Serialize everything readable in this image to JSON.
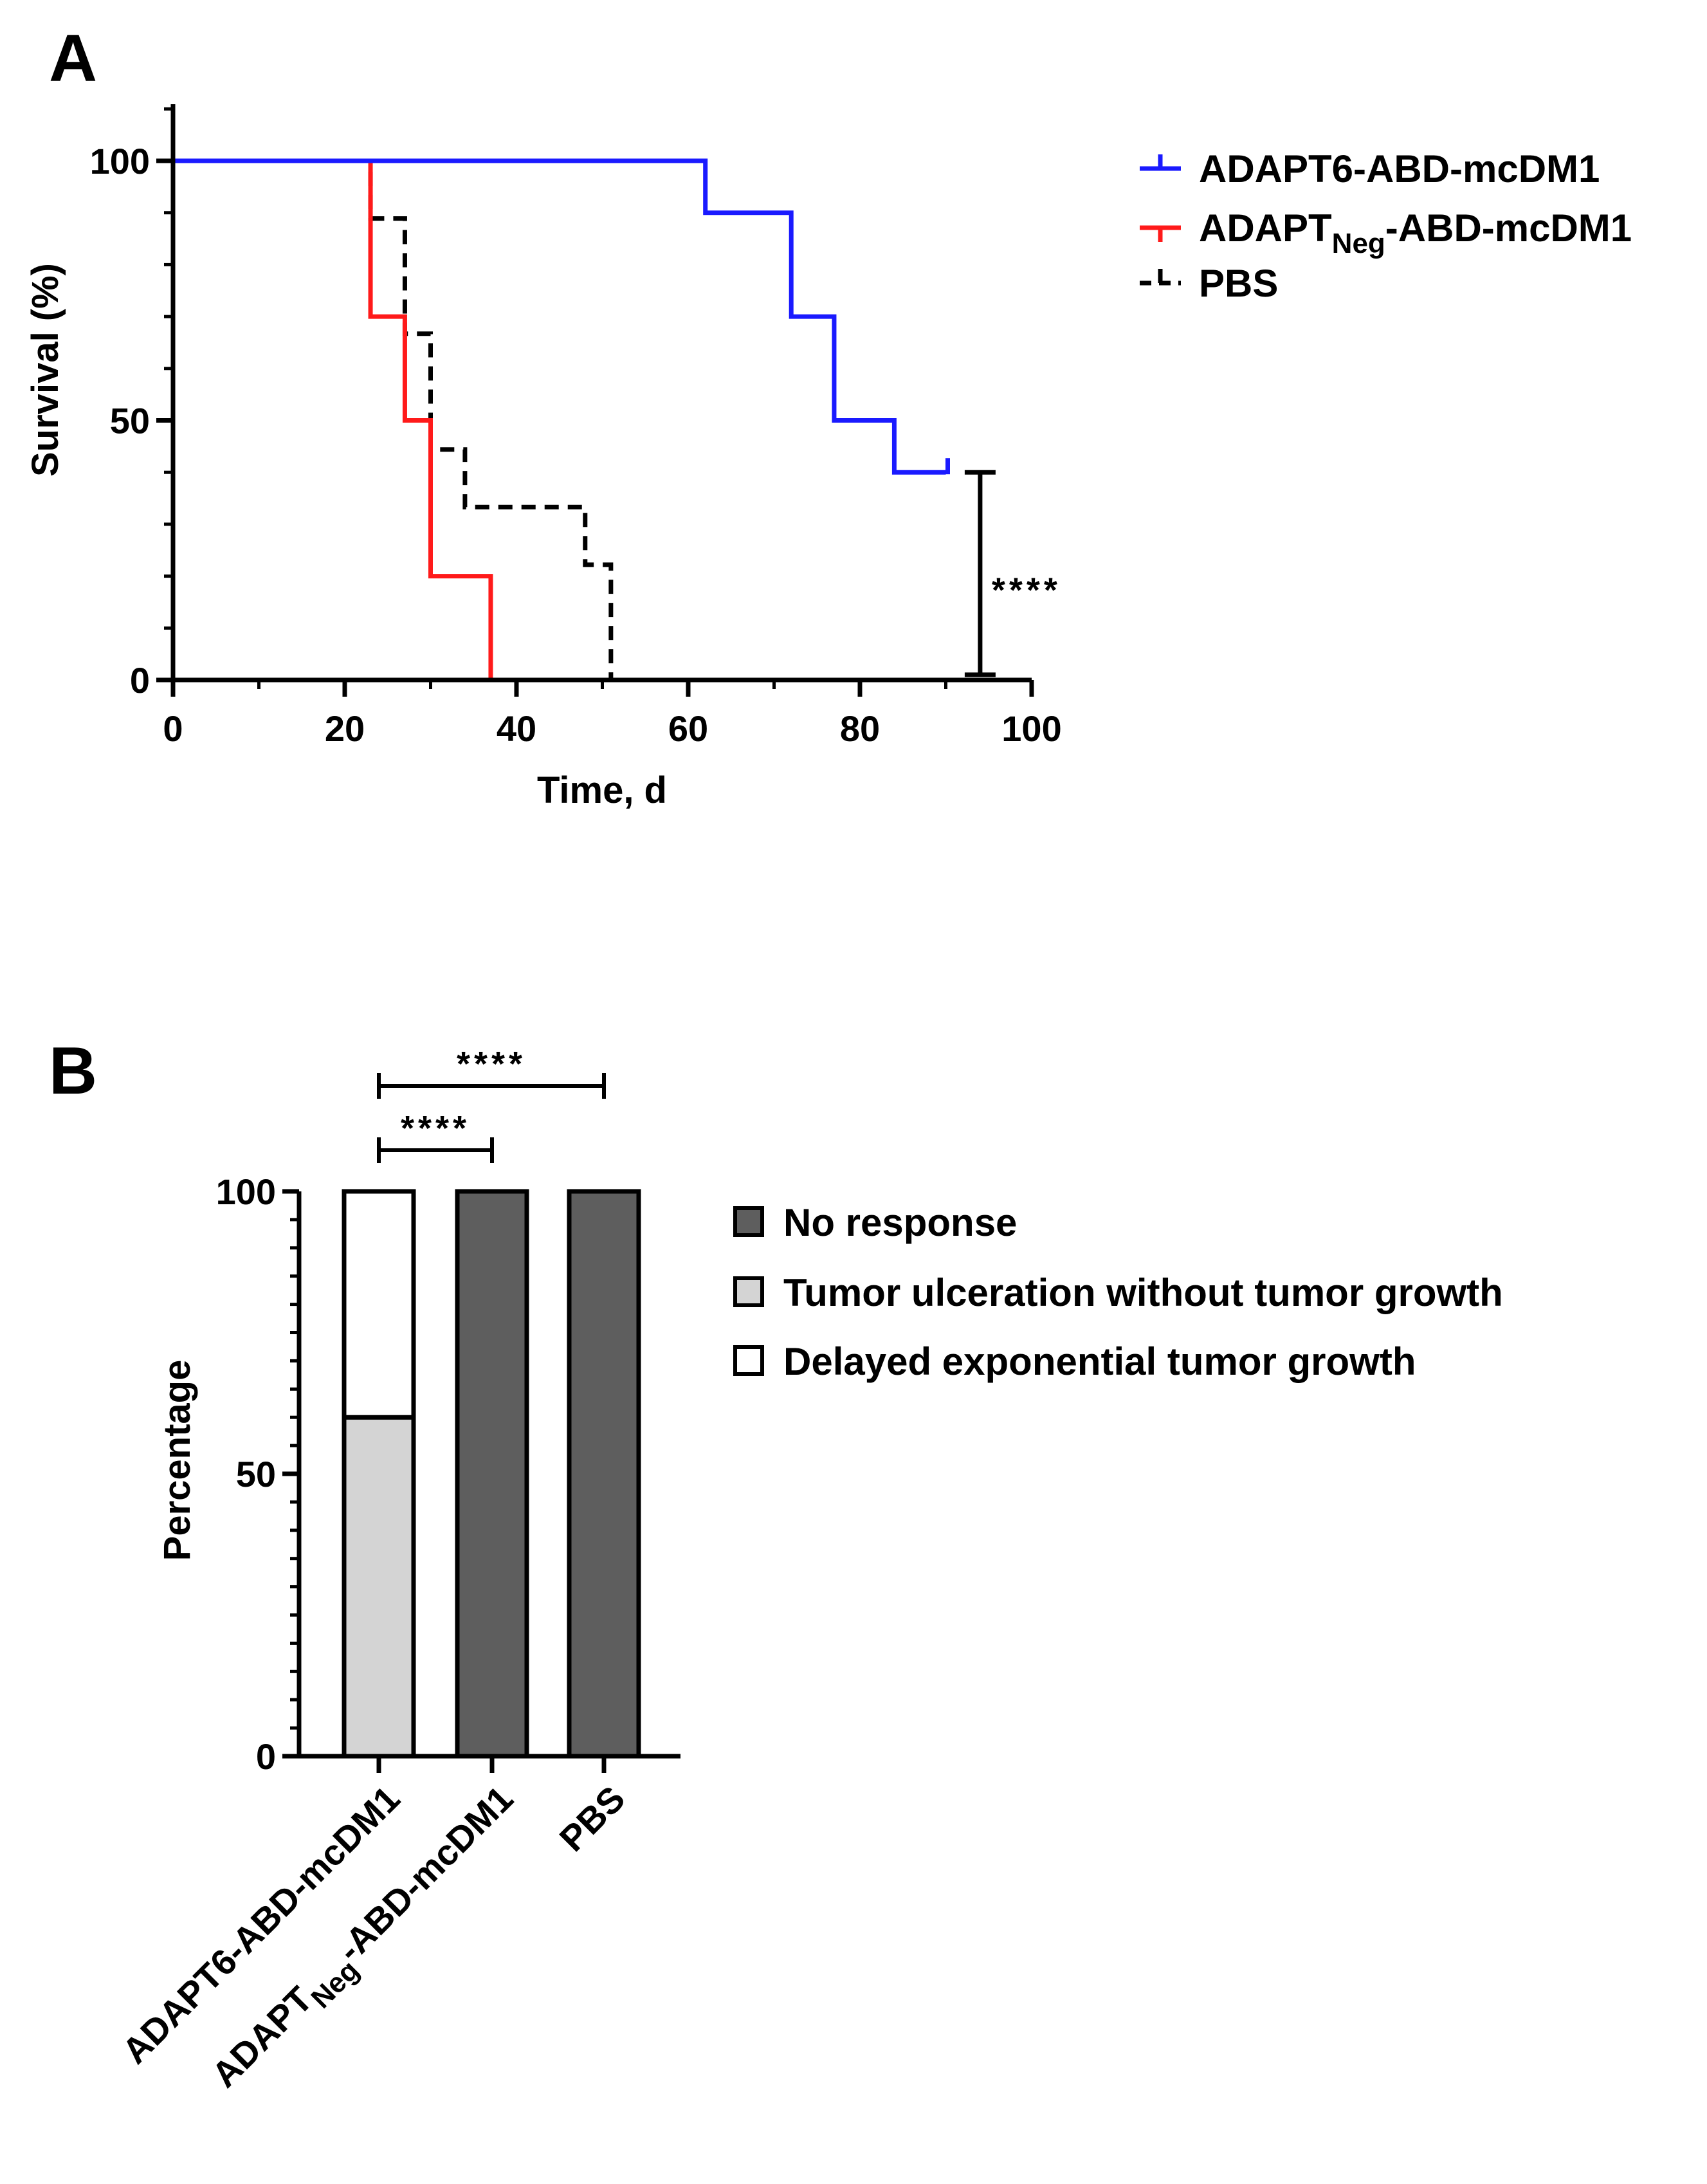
{
  "chart_data": [
    {
      "panel": "A",
      "type": "line",
      "subtype": "kaplan-meier",
      "xlabel": "Time, d",
      "ylabel": "Survival (%)",
      "xlim": [
        0,
        100
      ],
      "ylim": [
        0,
        100
      ],
      "xticks": [
        0,
        20,
        40,
        60,
        80,
        100
      ],
      "yticks": [
        0,
        50,
        100
      ],
      "series": [
        {
          "name": "ADAPT6-ABD-mcDM1",
          "name_parts": [
            "ADAPT6-ABD-mcDM1"
          ],
          "color": "#1a1aff",
          "dash": "solid",
          "points": [
            [
              0,
              100
            ],
            [
              62,
              100
            ],
            [
              62,
              90
            ],
            [
              72,
              90
            ],
            [
              72,
              70
            ],
            [
              77,
              70
            ],
            [
              77,
              50
            ],
            [
              84,
              50
            ],
            [
              84,
              40
            ],
            [
              90,
              40
            ]
          ],
          "censor": [
            [
              90,
              40
            ]
          ]
        },
        {
          "name": "ADAPTNeg-ABD-mcDM1",
          "name_parts": [
            "ADAPT",
            "Neg",
            "-ABD-mcDM1"
          ],
          "color": "#ff1a1a",
          "dash": "solid",
          "points": [
            [
              0,
              100
            ],
            [
              23,
              100
            ],
            [
              23,
              70
            ],
            [
              27,
              70
            ],
            [
              27,
              50
            ],
            [
              30,
              50
            ],
            [
              30,
              20
            ],
            [
              37,
              20
            ],
            [
              37,
              0
            ]
          ],
          "censor": []
        },
        {
          "name": "PBS",
          "name_parts": [
            "PBS"
          ],
          "color": "#000000",
          "dash": "dashed",
          "points": [
            [
              0,
              100
            ],
            [
              23,
              100
            ],
            [
              23,
              88.9
            ],
            [
              27,
              88.9
            ],
            [
              27,
              66.7
            ],
            [
              30,
              66.7
            ],
            [
              30,
              44.4
            ],
            [
              34,
              44.4
            ],
            [
              34,
              33.3
            ],
            [
              48,
              33.3
            ],
            [
              48,
              22.2
            ],
            [
              51,
              22.2
            ],
            [
              51,
              0
            ]
          ],
          "censor": []
        }
      ],
      "annotations": [
        {
          "text": "****",
          "x": 94,
          "y_range": [
            1,
            40
          ]
        }
      ],
      "legend_position": "right"
    },
    {
      "panel": "B",
      "type": "bar",
      "subtype": "stacked",
      "ylabel": "Percentage",
      "ylim": [
        0,
        100
      ],
      "yticks": [
        0,
        50,
        100
      ],
      "categories": [
        "ADAPT6-ABD-mcDM1",
        "ADAPTNeg-ABD-mcDM1",
        "PBS"
      ],
      "category_parts": [
        [
          "ADAPT6-ABD-mcDM1"
        ],
        [
          "ADAPT",
          "Neg",
          "-ABD-mcDM1"
        ],
        [
          "PBS"
        ]
      ],
      "series": [
        {
          "name": "Tumor ulceration without tumor growth",
          "color": "#d4d4d4",
          "values": [
            60,
            0,
            0
          ]
        },
        {
          "name": "Delayed exponential tumor growth",
          "color": "#ffffff",
          "values": [
            40,
            0,
            0
          ]
        },
        {
          "name": "No response",
          "color": "#5e5e5e",
          "values": [
            0,
            100,
            100
          ]
        }
      ],
      "legend_order": [
        "No response",
        "Tumor ulceration without tumor growth",
        "Delayed exponential tumor growth"
      ],
      "significance": [
        {
          "from": 0,
          "to": 1,
          "text": "****"
        },
        {
          "from": 0,
          "to": 2,
          "text": "****"
        }
      ],
      "legend_position": "right"
    }
  ],
  "panels": {
    "a": {
      "letter": "A"
    },
    "b": {
      "letter": "B"
    }
  }
}
